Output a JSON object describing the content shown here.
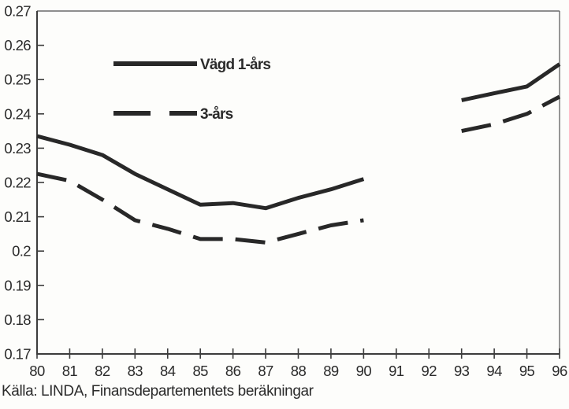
{
  "caption": "Källa: LINDA, Finansdepartementets beräkningar",
  "colors": {
    "line": "#282828",
    "frame_light": "#6a6a6a",
    "frame_dark": "#3c3c3c",
    "text": "#2b2b2b",
    "background": "#fdfdfb"
  },
  "chart_data": {
    "type": "line",
    "title": "",
    "xlabel": "",
    "ylabel": "",
    "xlim": [
      80,
      96
    ],
    "ylim": [
      0.17,
      0.27
    ],
    "grid": false,
    "legend_position": "upper-left-inside",
    "x": [
      80,
      81,
      82,
      83,
      84,
      85,
      86,
      87,
      88,
      89,
      90,
      91,
      92,
      93,
      94,
      95,
      96
    ],
    "x_tick_labels": [
      "80",
      "81",
      "82",
      "83",
      "84",
      "85",
      "86",
      "87",
      "88",
      "89",
      "90",
      "91",
      "92",
      "93",
      "94",
      "95",
      "96"
    ],
    "y_ticks": [
      0.17,
      0.18,
      0.19,
      0.2,
      0.21,
      0.22,
      0.23,
      0.24,
      0.25,
      0.26,
      0.27
    ],
    "y_tick_labels": [
      "0.17",
      "0.18",
      "0.19",
      "0.2",
      "0.21",
      "0.22",
      "0.23",
      "0.24",
      "0.25",
      "0.26",
      "0.27"
    ],
    "series": [
      {
        "name": "Vägd 1-års",
        "style": "solid",
        "values": [
          0.2335,
          0.231,
          0.228,
          0.2225,
          0.218,
          0.2135,
          0.214,
          0.2125,
          0.2155,
          0.218,
          0.221,
          null,
          null,
          0.244,
          0.246,
          0.248,
          0.2545
        ]
      },
      {
        "name": "3-års",
        "style": "dashed",
        "values": [
          0.2225,
          0.2205,
          0.215,
          0.209,
          0.2065,
          0.2035,
          0.2035,
          0.2025,
          0.205,
          0.2075,
          0.209,
          null,
          null,
          0.235,
          0.237,
          0.24,
          0.245
        ]
      }
    ]
  }
}
